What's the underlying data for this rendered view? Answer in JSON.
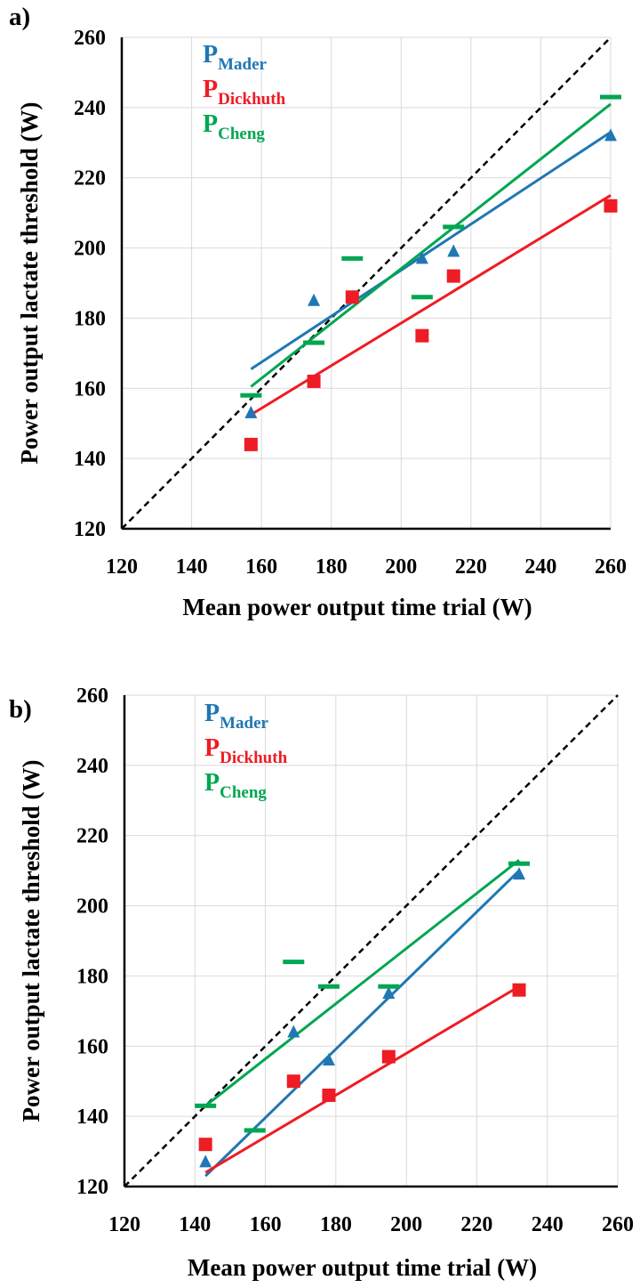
{
  "chart_data": [
    {
      "panel": "a)",
      "type": "scatter",
      "xlabel": "Mean power output time trial (W)",
      "ylabel": "Power output lactate threshold (W)",
      "xlim": [
        120,
        260
      ],
      "ylim": [
        120,
        260
      ],
      "xticks": [
        120,
        140,
        160,
        180,
        200,
        220,
        240,
        260
      ],
      "yticks": [
        120,
        140,
        160,
        180,
        200,
        220,
        240,
        260
      ],
      "grid": true,
      "legend_placement": "top-left",
      "identity_line": true,
      "series": [
        {
          "name": "P",
          "sub": "Mader",
          "color": "#1f77b4",
          "marker": "triangle",
          "points": [
            [
              157,
              153
            ],
            [
              175,
              185
            ],
            [
              186,
              186
            ],
            [
              206,
              197
            ],
            [
              215,
              199
            ],
            [
              260,
              232
            ]
          ],
          "trend": [
            [
              157,
              165.5
            ],
            [
              260,
              233
            ]
          ]
        },
        {
          "name": "P",
          "sub": "Dickhuth",
          "color": "#ee1c24",
          "marker": "square",
          "points": [
            [
              157,
              144
            ],
            [
              175,
              162
            ],
            [
              186,
              186
            ],
            [
              206,
              175
            ],
            [
              215,
              192
            ],
            [
              260,
              212
            ]
          ],
          "trend": [
            [
              157,
              152.5
            ],
            [
              260,
              215
            ]
          ]
        },
        {
          "name": "P",
          "sub": "Cheng",
          "color": "#00a651",
          "marker": "dash",
          "points": [
            [
              157,
              158
            ],
            [
              175,
              173
            ],
            [
              186,
              197
            ],
            [
              206,
              186
            ],
            [
              215,
              206
            ],
            [
              260,
              243
            ]
          ],
          "trend": [
            [
              157,
              160.5
            ],
            [
              260,
              241
            ]
          ]
        }
      ]
    },
    {
      "panel": "b)",
      "type": "scatter",
      "xlabel": "Mean power output time trial (W)",
      "ylabel": "Power output lactate threshold (W)",
      "xlim": [
        120,
        260
      ],
      "ylim": [
        120,
        260
      ],
      "xticks": [
        120,
        140,
        160,
        180,
        200,
        220,
        240,
        260
      ],
      "yticks": [
        120,
        140,
        160,
        180,
        200,
        220,
        240,
        260
      ],
      "grid": true,
      "legend_placement": "top-left",
      "identity_line": true,
      "series": [
        {
          "name": "P",
          "sub": "Mader",
          "color": "#1f77b4",
          "marker": "triangle",
          "points": [
            [
              143,
              127
            ],
            [
              168,
              164
            ],
            [
              178,
              156
            ],
            [
              195,
              175
            ],
            [
              232,
              209
            ]
          ],
          "trend": [
            [
              143,
              123
            ],
            [
              232,
              210
            ]
          ]
        },
        {
          "name": "P",
          "sub": "Dickhuth",
          "color": "#ee1c24",
          "marker": "square",
          "points": [
            [
              143,
              132
            ],
            [
              168,
              150
            ],
            [
              178,
              146
            ],
            [
              195,
              157
            ],
            [
              232,
              176
            ]
          ],
          "trend": [
            [
              143,
              124
            ],
            [
              232,
              177
            ]
          ]
        },
        {
          "name": "P",
          "sub": "Cheng",
          "color": "#00a651",
          "marker": "dash",
          "points": [
            [
              143,
              143
            ],
            [
              157,
              136
            ],
            [
              168,
              184
            ],
            [
              178,
              177
            ],
            [
              195,
              177
            ],
            [
              232,
              212
            ]
          ],
          "trend": [
            [
              143,
              143
            ],
            [
              232,
              213
            ]
          ]
        }
      ]
    }
  ]
}
